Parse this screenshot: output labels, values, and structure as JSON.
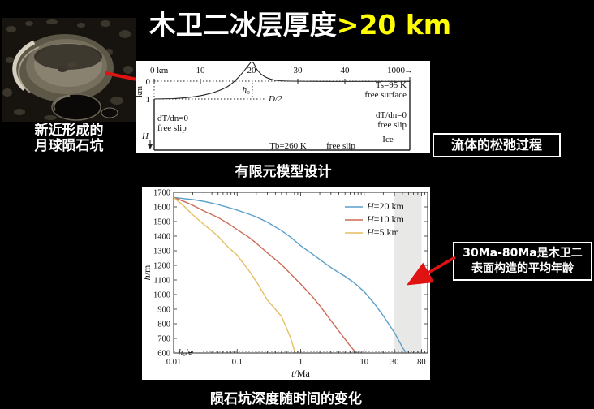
{
  "title": {
    "main": "木卫二冰层厚度",
    "highlight": ">20 km"
  },
  "moon": {
    "caption_line1": "新近形成的",
    "caption_line2": "月球陨石坑"
  },
  "model_diagram": {
    "caption": "有限元模型设计",
    "x_ticks": [
      "0 km",
      "10",
      "20",
      "30",
      "40",
      "1000"
    ],
    "axis_arrow": "→",
    "y_ticks": [
      "0",
      "1"
    ],
    "y_unit": "km",
    "labels": {
      "h0": "h₀",
      "half_diameter": "D/2",
      "surface_temp": "Ts=95 K",
      "free_surface": "free surface",
      "left_bc1": "dT/dn=0",
      "left_bc2": "free slip",
      "right_bc1": "dT/dn=0",
      "right_bc2": "free slip",
      "bottom_temp": "Tb=260 K",
      "bottom_slip": "free slip",
      "ice": "Ice",
      "depth": "H"
    }
  },
  "callout_boxes": {
    "relaxation": "流体的松弛过程",
    "age_line1": "30Ma-80Ma是木卫二",
    "age_line2": "表面构造的平均年龄"
  },
  "chart_caption": "陨石坑深度随时间的变化",
  "chart_data": {
    "type": "line",
    "title": "",
    "xlabel": "t/Ma",
    "ylabel": "h/m",
    "x_scale": "log",
    "xlim": [
      0.01,
      100
    ],
    "ylim": [
      600,
      1700
    ],
    "x_ticks": [
      0.01,
      0.1,
      1,
      10,
      30,
      80
    ],
    "y_tick_step": 100,
    "grid": false,
    "legend_position": "upper right",
    "shaded_region": {
      "x_start": 30,
      "x_end": 80,
      "color": "#e8e8e7",
      "meaning": "30–80 Ma average surface age of Europa"
    },
    "reference_line": {
      "y": 612,
      "label": "h₀/e",
      "style": "dashed"
    },
    "series": [
      {
        "name": "H=20 km",
        "color": "#5b9ec9",
        "points": [
          [
            0.01,
            1665
          ],
          [
            0.015,
            1656
          ],
          [
            0.02,
            1650
          ],
          [
            0.03,
            1638
          ],
          [
            0.05,
            1616
          ],
          [
            0.07,
            1598
          ],
          [
            0.1,
            1578
          ],
          [
            0.15,
            1552
          ],
          [
            0.2,
            1532
          ],
          [
            0.3,
            1495
          ],
          [
            0.5,
            1438
          ],
          [
            0.7,
            1392
          ],
          [
            1,
            1335
          ],
          [
            1.5,
            1280
          ],
          [
            2,
            1240
          ],
          [
            3,
            1185
          ],
          [
            4,
            1150
          ],
          [
            5,
            1125
          ],
          [
            7,
            1080
          ],
          [
            10,
            1020
          ],
          [
            15,
            930
          ],
          [
            20,
            855
          ],
          [
            30,
            740
          ],
          [
            40,
            640
          ],
          [
            45,
            605
          ]
        ]
      },
      {
        "name": "H=10 km",
        "color": "#cc6b55",
        "points": [
          [
            0.01,
            1665
          ],
          [
            0.015,
            1635
          ],
          [
            0.02,
            1611
          ],
          [
            0.03,
            1572
          ],
          [
            0.05,
            1528
          ],
          [
            0.07,
            1490
          ],
          [
            0.1,
            1445
          ],
          [
            0.15,
            1395
          ],
          [
            0.2,
            1352
          ],
          [
            0.3,
            1285
          ],
          [
            0.5,
            1205
          ],
          [
            0.7,
            1140
          ],
          [
            1,
            1072
          ],
          [
            1.5,
            990
          ],
          [
            2,
            925
          ],
          [
            3,
            822
          ],
          [
            4,
            750
          ],
          [
            5,
            695
          ],
          [
            6,
            650
          ],
          [
            7,
            615
          ],
          [
            7.6,
            600
          ]
        ]
      },
      {
        "name": "H=5 km",
        "color": "#e6bf5f",
        "points": [
          [
            0.01,
            1665
          ],
          [
            0.015,
            1600
          ],
          [
            0.02,
            1546
          ],
          [
            0.03,
            1480
          ],
          [
            0.05,
            1400
          ],
          [
            0.07,
            1330
          ],
          [
            0.1,
            1270
          ],
          [
            0.15,
            1170
          ],
          [
            0.2,
            1090
          ],
          [
            0.3,
            962
          ],
          [
            0.4,
            900
          ],
          [
            0.5,
            850
          ],
          [
            0.6,
            770
          ],
          [
            0.7,
            700
          ],
          [
            0.78,
            630
          ],
          [
            0.82,
            600
          ]
        ]
      }
    ]
  }
}
